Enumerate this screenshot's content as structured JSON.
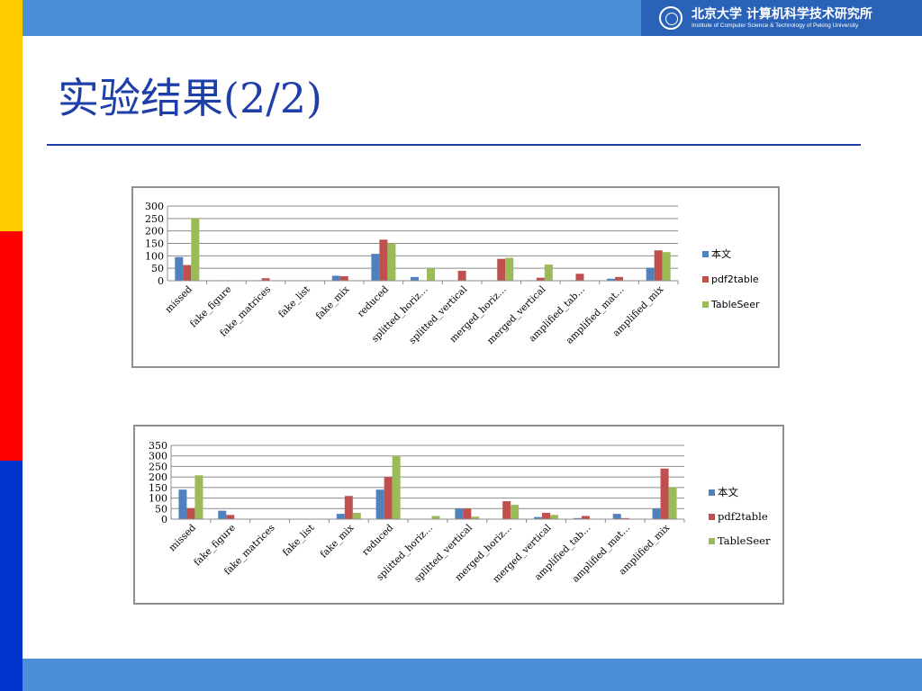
{
  "header": {
    "logo_cn": "北京大学 计算机科学技术研究所",
    "logo_en": "Institute of Computer Science & Technology of Peking University"
  },
  "slide": {
    "title": "实验结果(2/2)"
  },
  "colors": {
    "series": [
      "#4f81bd",
      "#c0504d",
      "#9bbb59"
    ],
    "title": "#1f3fa8",
    "top_bar": "#4a8fd8"
  },
  "chart_data": [
    {
      "type": "bar",
      "categories": [
        "missed",
        "fake_figure",
        "fake_matrices",
        "fake_list",
        "fake_mix",
        "reduced",
        "splitted_horiz…",
        "splitted_vertical",
        "merged_horiz…",
        "merged_vertical",
        "amplified_tab…",
        "amplified_mat…",
        "amplified_mix"
      ],
      "series": [
        {
          "name": "本文",
          "values": [
            95,
            2,
            2,
            0,
            20,
            108,
            15,
            0,
            0,
            2,
            2,
            8,
            52
          ]
        },
        {
          "name": "pdf2table",
          "values": [
            63,
            2,
            10,
            0,
            18,
            165,
            0,
            40,
            88,
            12,
            28,
            15,
            122
          ]
        },
        {
          "name": "TableSeer",
          "values": [
            252,
            0,
            0,
            0,
            0,
            150,
            50,
            0,
            92,
            65,
            0,
            0,
            115
          ]
        }
      ],
      "yticks": [
        "0",
        "50",
        "100",
        "150",
        "200",
        "250",
        "300"
      ],
      "ylim": [
        0,
        300
      ],
      "grid": true,
      "legend_position": "right",
      "title": "",
      "xlabel": "",
      "ylabel": ""
    },
    {
      "type": "bar",
      "categories": [
        "missed",
        "fake_figure",
        "fake_matrices",
        "fake_list",
        "fake_mix",
        "reduced",
        "splitted_horiz…",
        "splitted_vertical",
        "merged_horiz…",
        "merged_vertical",
        "amplified_tab…",
        "amplified_mat…",
        "amplified_mix"
      ],
      "series": [
        {
          "name": "本文",
          "values": [
            140,
            40,
            0,
            0,
            25,
            140,
            0,
            50,
            0,
            10,
            5,
            25,
            50
          ]
        },
        {
          "name": "pdf2table",
          "values": [
            52,
            20,
            0,
            0,
            110,
            200,
            0,
            50,
            85,
            30,
            15,
            5,
            240
          ]
        },
        {
          "name": "TableSeer",
          "values": [
            208,
            0,
            0,
            0,
            30,
            300,
            15,
            12,
            68,
            20,
            0,
            0,
            150
          ]
        }
      ],
      "yticks": [
        "0",
        "50",
        "100",
        "150",
        "200",
        "250",
        "300",
        "350"
      ],
      "ylim": [
        0,
        350
      ],
      "grid": true,
      "legend_position": "right",
      "title": "",
      "xlabel": "",
      "ylabel": ""
    }
  ]
}
